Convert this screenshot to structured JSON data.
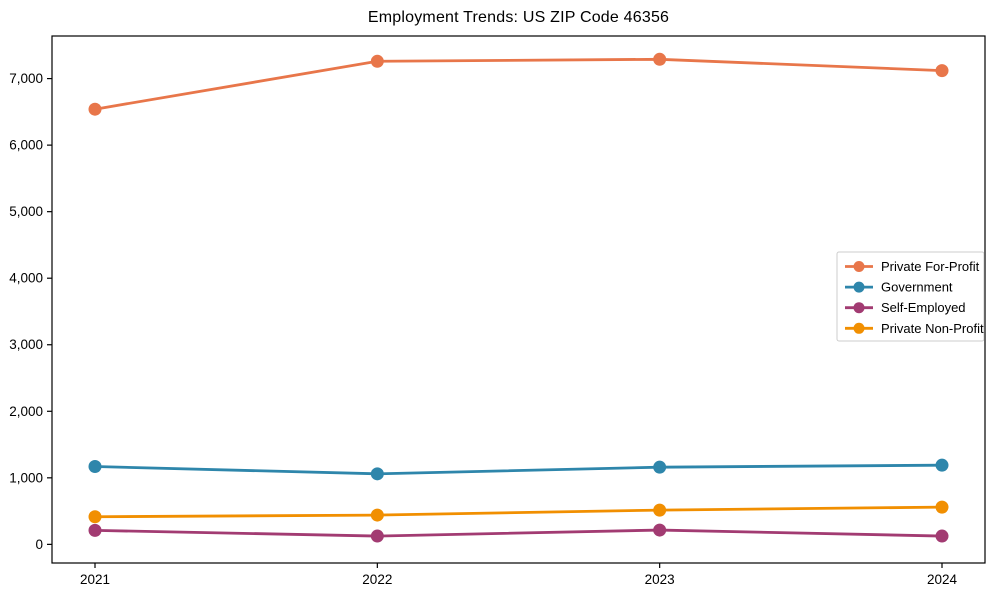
{
  "chart_data": {
    "type": "line",
    "title": "Employment Trends: US ZIP Code 46356",
    "categories": [
      "2021",
      "2022",
      "2023",
      "2024"
    ],
    "series": [
      {
        "name": "Private For-Profit",
        "color": "#E8764A",
        "values": [
          6540,
          7260,
          7290,
          7120
        ]
      },
      {
        "name": "Government",
        "color": "#2E86AB",
        "values": [
          1170,
          1060,
          1160,
          1190
        ]
      },
      {
        "name": "Self-Employed",
        "color": "#A23B72",
        "values": [
          210,
          125,
          215,
          125
        ]
      },
      {
        "name": "Private Non-Profit",
        "color": "#F18F01",
        "values": [
          415,
          440,
          515,
          560
        ]
      }
    ],
    "marker": "circle",
    "grid": false,
    "legend_position": "center right",
    "ylim": [
      -280,
      7640
    ],
    "yticks": [
      0,
      1000,
      2000,
      3000,
      4000,
      5000,
      6000,
      7000
    ],
    "ytick_labels": [
      "0",
      "1,000",
      "2,000",
      "3,000",
      "4,000",
      "5,000",
      "6,000",
      "7,000"
    ],
    "axis_color": "#000000",
    "legend_border_color": "#cccccc",
    "legend_bg_color": "#ffffff"
  }
}
